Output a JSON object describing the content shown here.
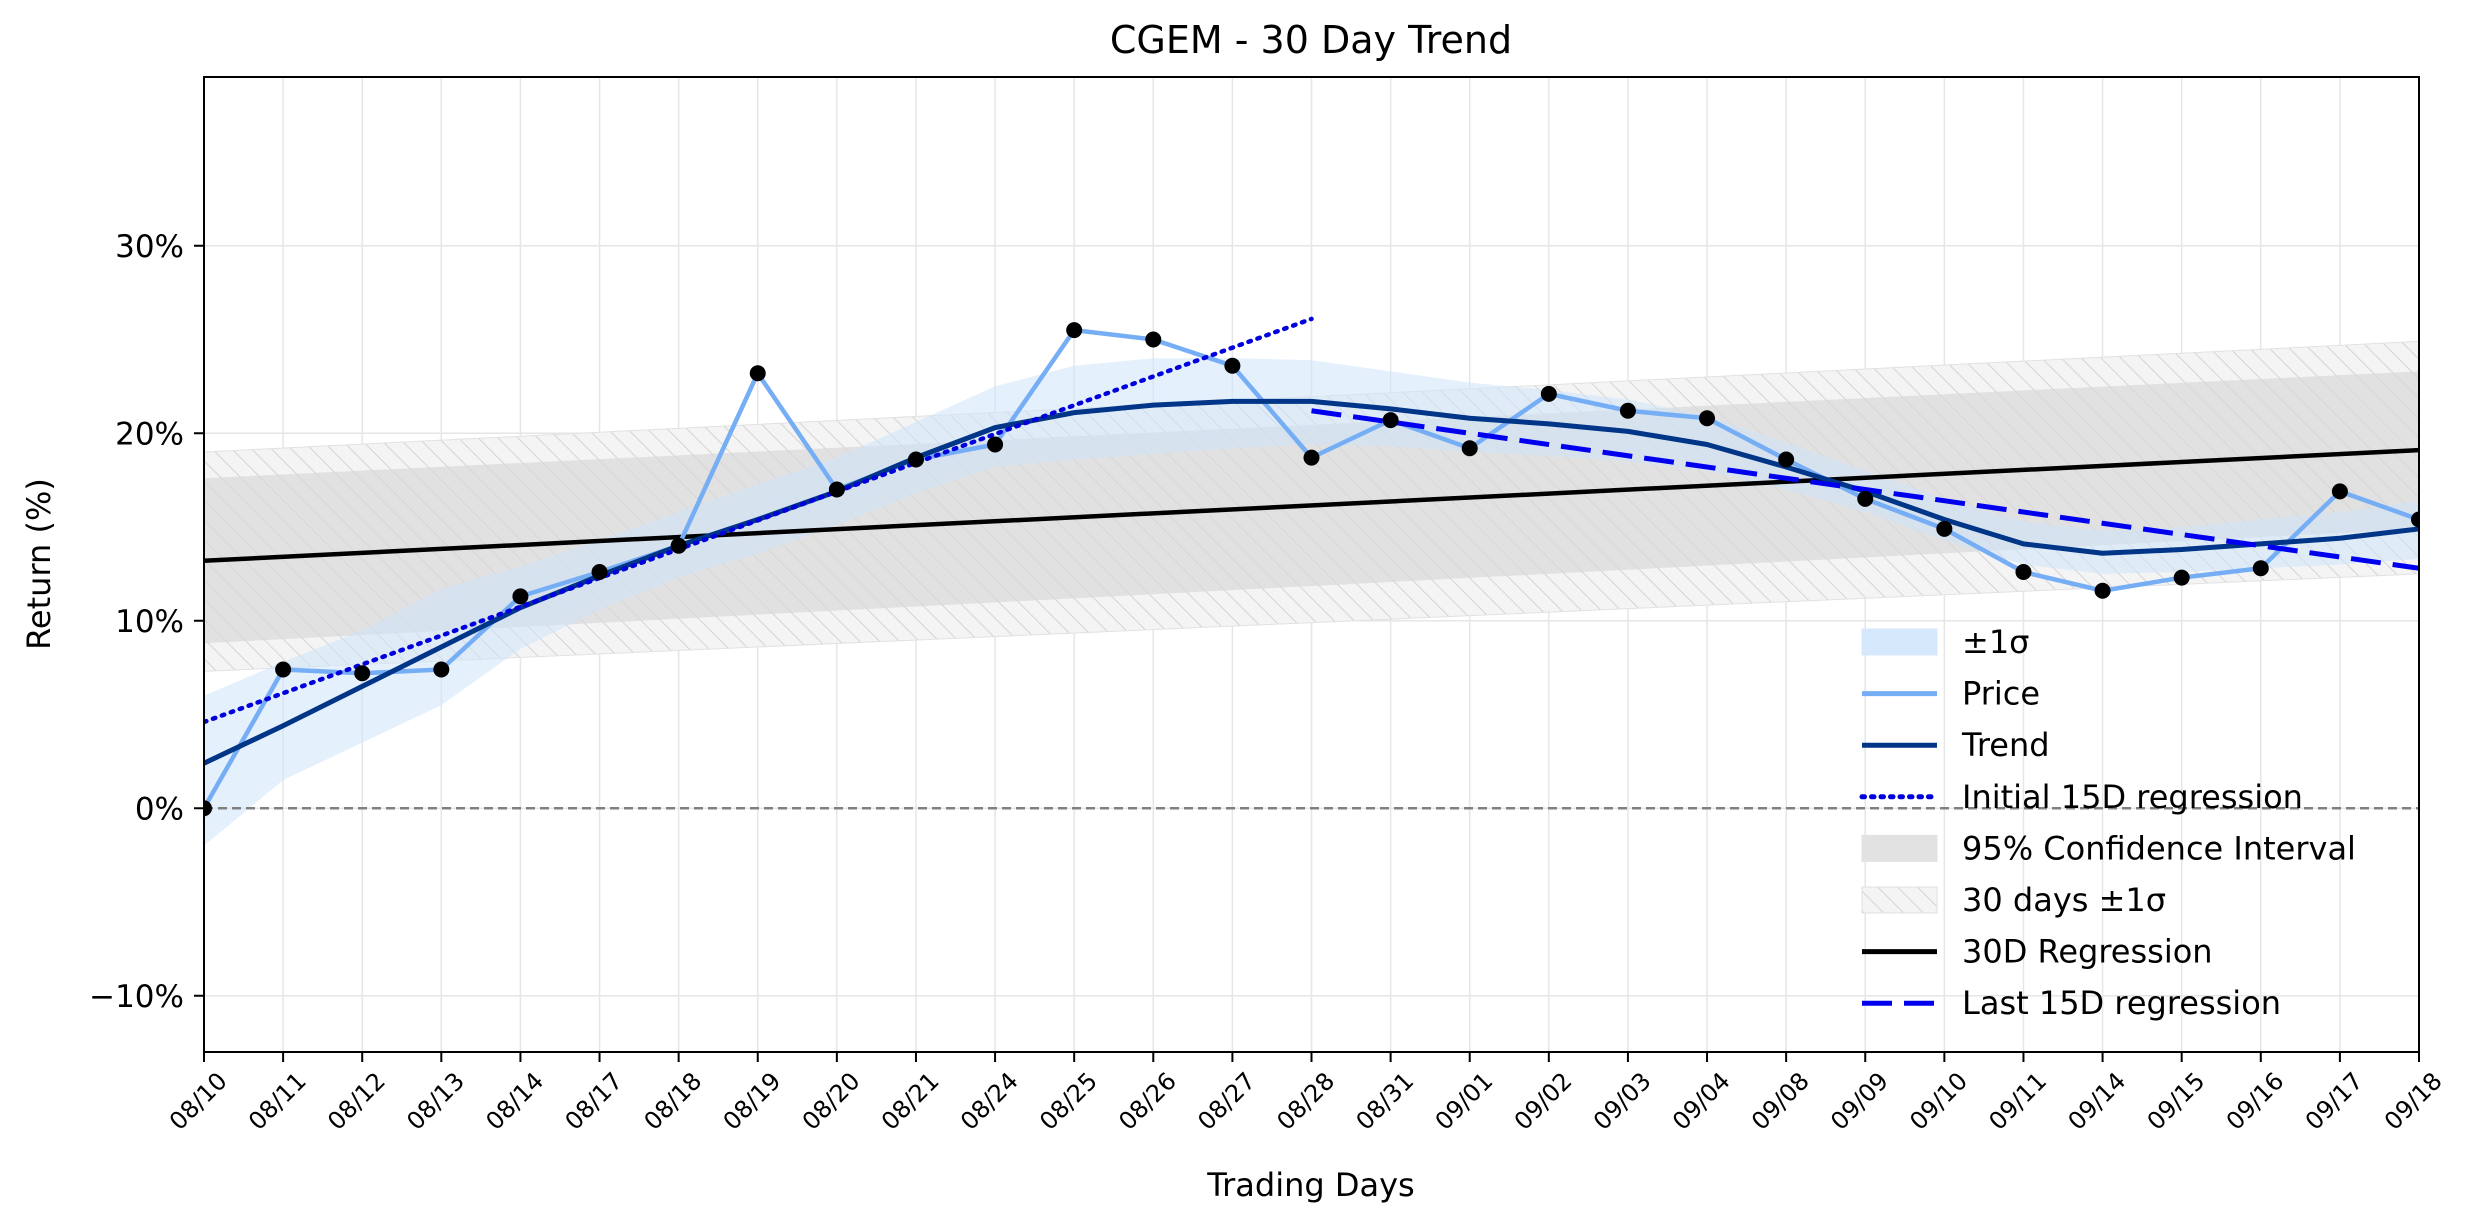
{
  "chart_data": {
    "type": "line",
    "title": "CGEM - 30 Day Trend",
    "xlabel": "Trading Days",
    "ylabel": "Return (%)",
    "categories": [
      "08/10",
      "08/11",
      "08/12",
      "08/13",
      "08/14",
      "08/17",
      "08/18",
      "08/19",
      "08/20",
      "08/21",
      "08/24",
      "08/25",
      "08/26",
      "08/27",
      "08/28",
      "08/31",
      "09/01",
      "09/02",
      "09/03",
      "09/04",
      "09/08",
      "09/09",
      "09/10",
      "09/11",
      "09/14",
      "09/15",
      "09/16",
      "09/17",
      "09/18"
    ],
    "ylim": [
      -13,
      39
    ],
    "yticks": [
      -10,
      0,
      10,
      20,
      30
    ],
    "ytick_labels": [
      "−10%",
      "0%",
      "10%",
      "20%",
      "30%"
    ],
    "grid": true,
    "legend_position": "lower-right",
    "zero_line": 0,
    "series": [
      {
        "name": "Price",
        "kind": "line-markers",
        "color": "#76aef5",
        "marker_color": "#000000",
        "values": [
          0.0,
          7.4,
          7.2,
          7.4,
          11.3,
          12.6,
          14.0,
          23.2,
          17.0,
          18.6,
          19.4,
          25.5,
          25.0,
          23.6,
          18.7,
          20.7,
          19.2,
          22.1,
          21.2,
          20.8,
          18.6,
          16.5,
          14.9,
          12.6,
          11.6,
          12.3,
          12.8,
          16.9,
          15.4
        ]
      },
      {
        "name": "Trend",
        "kind": "line",
        "color": "#003587",
        "values": [
          2.4,
          4.4,
          6.5,
          8.6,
          10.7,
          12.4,
          14.0,
          15.4,
          16.9,
          18.7,
          20.3,
          21.1,
          21.5,
          21.7,
          21.7,
          21.3,
          20.8,
          20.5,
          20.1,
          19.4,
          18.2,
          16.9,
          15.4,
          14.1,
          13.6,
          13.8,
          14.1,
          14.4,
          14.9
        ]
      },
      {
        "name": "±1σ",
        "kind": "band",
        "color": "#d6e8fb",
        "lower": [
          -2.0,
          1.5,
          3.5,
          5.5,
          8.5,
          10.6,
          12.3,
          13.6,
          15.1,
          16.8,
          18.2,
          18.6,
          18.9,
          19.2,
          19.4,
          19.3,
          19.0,
          18.8,
          18.5,
          18.0,
          17.0,
          15.8,
          14.3,
          13.0,
          12.5,
          12.6,
          12.8,
          13.0,
          13.3
        ],
        "upper": [
          6.0,
          7.8,
          9.5,
          11.7,
          12.9,
          14.3,
          15.8,
          17.3,
          18.7,
          20.6,
          22.5,
          23.6,
          24.0,
          24.0,
          23.9,
          23.3,
          22.7,
          22.3,
          21.8,
          20.9,
          19.5,
          18.0,
          16.5,
          15.3,
          14.8,
          15.0,
          15.4,
          15.8,
          16.4
        ]
      },
      {
        "name": "Initial 15D regression",
        "kind": "dotted",
        "color": "#0000dd",
        "x_range": [
          "08/10",
          "08/28"
        ],
        "y_range": [
          4.6,
          26.1
        ]
      },
      {
        "name": "95% Confidence Interval",
        "kind": "band",
        "color": "#e2e2e2",
        "x_range": [
          "08/10",
          "09/18"
        ],
        "lower_range": [
          8.8,
          14.9
        ],
        "upper_range": [
          17.6,
          23.3
        ]
      },
      {
        "name": "30 days ±1σ",
        "kind": "hatched-band",
        "color": "#ececec",
        "x_range": [
          "08/10",
          "09/18"
        ],
        "lower_range": [
          7.3,
          12.5
        ],
        "upper_range": [
          19.0,
          24.9
        ]
      },
      {
        "name": "30D Regression",
        "kind": "line",
        "color": "#000000",
        "x_range": [
          "08/10",
          "09/18"
        ],
        "y_range": [
          13.2,
          19.1
        ]
      },
      {
        "name": "Last 15D regression",
        "kind": "dashed",
        "color": "#0000ee",
        "x_range": [
          "08/28",
          "09/18"
        ],
        "y_range": [
          21.2,
          12.8
        ]
      }
    ],
    "legend_order": [
      "±1σ",
      "Price",
      "Trend",
      "Initial 15D regression",
      "95% Confidence Interval",
      "30 days ±1σ",
      "30D Regression",
      "Last 15D regression"
    ]
  }
}
